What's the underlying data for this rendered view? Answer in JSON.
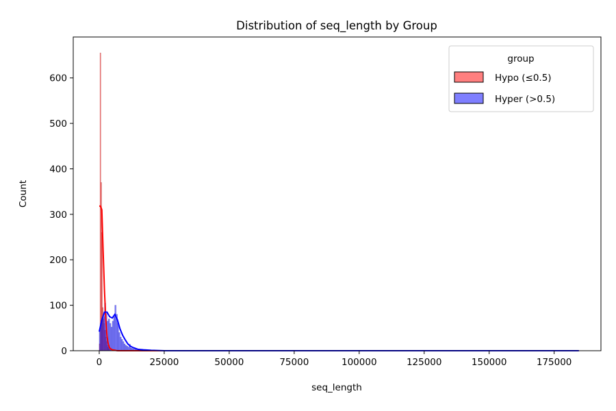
{
  "chart_data": {
    "type": "histogram",
    "title": "Distribution of seq_length by Group",
    "xlabel": "seq_length",
    "ylabel": "Count",
    "xlim": [
      -10000,
      193000
    ],
    "ylim": [
      0,
      690
    ],
    "xticks": [
      0,
      25000,
      50000,
      75000,
      100000,
      125000,
      150000,
      175000
    ],
    "yticks": [
      0,
      100,
      200,
      300,
      400,
      500,
      600
    ],
    "grid": false,
    "legend": {
      "title": "group",
      "position": "top-right"
    },
    "series": [
      {
        "name": "Hypo (≤0.5)",
        "color": "#ff0000",
        "bins": [
          {
            "x0": 0,
            "x1": 300,
            "count": 15
          },
          {
            "x0": 300,
            "x1": 600,
            "count": 655
          },
          {
            "x0": 600,
            "x1": 900,
            "count": 370
          },
          {
            "x0": 900,
            "x1": 1200,
            "count": 260
          },
          {
            "x0": 1200,
            "x1": 1500,
            "count": 95
          },
          {
            "x0": 1500,
            "x1": 1800,
            "count": 70
          },
          {
            "x0": 1800,
            "x1": 2100,
            "count": 60
          },
          {
            "x0": 2100,
            "x1": 2400,
            "count": 45
          },
          {
            "x0": 2400,
            "x1": 2700,
            "count": 30
          },
          {
            "x0": 2700,
            "x1": 3000,
            "count": 20
          },
          {
            "x0": 3000,
            "x1": 3300,
            "count": 12
          },
          {
            "x0": 3300,
            "x1": 3600,
            "count": 8
          },
          {
            "x0": 3600,
            "x1": 3900,
            "count": 5
          },
          {
            "x0": 3900,
            "x1": 4200,
            "count": 3
          },
          {
            "x0": 4200,
            "x1": 4500,
            "count": 2
          }
        ],
        "kde": [
          [
            0,
            318
          ],
          [
            500,
            318
          ],
          [
            1000,
            310
          ],
          [
            1500,
            220
          ],
          [
            2000,
            135
          ],
          [
            2500,
            70
          ],
          [
            3000,
            32
          ],
          [
            3500,
            14
          ],
          [
            4000,
            6
          ],
          [
            5000,
            2
          ],
          [
            7000,
            0
          ],
          [
            184500,
            0
          ]
        ]
      },
      {
        "name": "Hyper (>0.5)",
        "color": "#0000ff",
        "bins": [
          {
            "x0": 0,
            "x1": 500,
            "count": 45
          },
          {
            "x0": 500,
            "x1": 1000,
            "count": 60
          },
          {
            "x0": 1000,
            "x1": 1500,
            "count": 70
          },
          {
            "x0": 1500,
            "x1": 2000,
            "count": 75
          },
          {
            "x0": 2000,
            "x1": 2500,
            "count": 105
          },
          {
            "x0": 2500,
            "x1": 3000,
            "count": 82
          },
          {
            "x0": 3000,
            "x1": 3500,
            "count": 65
          },
          {
            "x0": 3500,
            "x1": 4000,
            "count": 70
          },
          {
            "x0": 4000,
            "x1": 4500,
            "count": 60
          },
          {
            "x0": 4500,
            "x1": 5000,
            "count": 52
          },
          {
            "x0": 5000,
            "x1": 5500,
            "count": 65
          },
          {
            "x0": 5500,
            "x1": 6000,
            "count": 75
          },
          {
            "x0": 6000,
            "x1": 6500,
            "count": 100
          },
          {
            "x0": 6500,
            "x1": 7000,
            "count": 80
          },
          {
            "x0": 7000,
            "x1": 7500,
            "count": 60
          },
          {
            "x0": 7500,
            "x1": 8000,
            "count": 40
          },
          {
            "x0": 8000,
            "x1": 8500,
            "count": 30
          },
          {
            "x0": 8500,
            "x1": 9000,
            "count": 25
          },
          {
            "x0": 9000,
            "x1": 9500,
            "count": 20
          },
          {
            "x0": 9500,
            "x1": 10000,
            "count": 15
          },
          {
            "x0": 10000,
            "x1": 10500,
            "count": 12
          },
          {
            "x0": 10500,
            "x1": 11000,
            "count": 10
          },
          {
            "x0": 11000,
            "x1": 11500,
            "count": 8
          },
          {
            "x0": 11500,
            "x1": 12000,
            "count": 14
          },
          {
            "x0": 12000,
            "x1": 12500,
            "count": 6
          },
          {
            "x0": 12500,
            "x1": 13000,
            "count": 5
          },
          {
            "x0": 13000,
            "x1": 14000,
            "count": 4
          },
          {
            "x0": 14000,
            "x1": 15000,
            "count": 3
          },
          {
            "x0": 15000,
            "x1": 16500,
            "count": 2
          },
          {
            "x0": 16500,
            "x1": 18000,
            "count": 2
          },
          {
            "x0": 18000,
            "x1": 20000,
            "count": 1
          },
          {
            "x0": 20000,
            "x1": 22000,
            "count": 1
          }
        ],
        "kde": [
          [
            0,
            42
          ],
          [
            1000,
            68
          ],
          [
            2000,
            85
          ],
          [
            3000,
            85
          ],
          [
            4000,
            75
          ],
          [
            5000,
            72
          ],
          [
            6000,
            80
          ],
          [
            7000,
            68
          ],
          [
            8000,
            48
          ],
          [
            9000,
            34
          ],
          [
            10000,
            24
          ],
          [
            11000,
            15
          ],
          [
            12000,
            10
          ],
          [
            13000,
            7
          ],
          [
            14000,
            5
          ],
          [
            15000,
            3
          ],
          [
            17000,
            2
          ],
          [
            20000,
            1
          ],
          [
            25000,
            0
          ],
          [
            184500,
            0
          ]
        ]
      }
    ]
  }
}
